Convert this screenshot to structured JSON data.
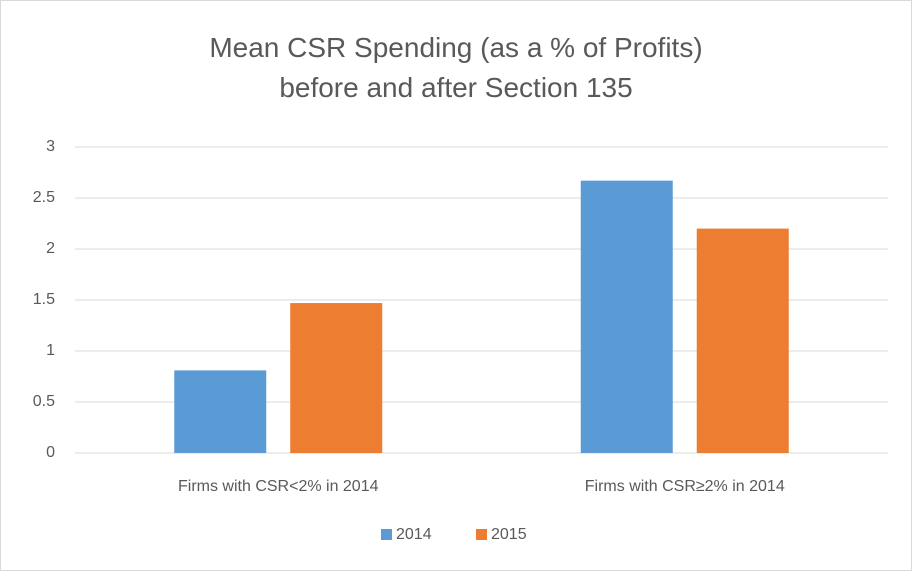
{
  "chart_data": {
    "type": "bar",
    "title": "Mean CSR Spending (as a % of Profits) before and after Section 135",
    "categories": [
      "Firms with CSR<2% in 2014",
      "Firms with CSR≥2% in 2014"
    ],
    "series": [
      {
        "name": "2014",
        "color": "#5b9bd5",
        "values": [
          0.81,
          2.67
        ]
      },
      {
        "name": "2015",
        "color": "#ed7d31",
        "values": [
          1.47,
          2.2
        ]
      }
    ],
    "ylim": [
      0,
      3
    ],
    "yticks": [
      0,
      0.5,
      1,
      1.5,
      2,
      2.5,
      3
    ],
    "grid": true,
    "legend": "bottom"
  }
}
